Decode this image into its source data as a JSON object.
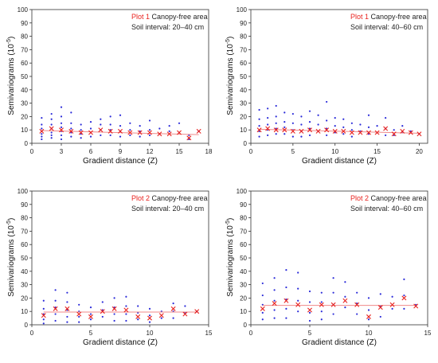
{
  "chart_data": [
    {
      "type": "scatter",
      "plot": "Plot 1",
      "area": "Canopy-free area",
      "soil_label": "Soil interval:",
      "interval": "20–40 cm",
      "xlabel": "Gradient distance (Z)",
      "ylabel_main": "Semivariograms (10",
      "ylabel_sup": "-5",
      "ylabel_end": ")",
      "xlim": [
        0,
        18
      ],
      "ylim": [
        0,
        100
      ],
      "xticks": [
        0,
        3,
        6,
        9,
        12,
        15,
        18
      ],
      "yticks": [
        0,
        10,
        20,
        30,
        40,
        50,
        60,
        70,
        80,
        90,
        100
      ],
      "points": [
        [
          1,
          19
        ],
        [
          1,
          14
        ],
        [
          1,
          11
        ],
        [
          1,
          9
        ],
        [
          1,
          7
        ],
        [
          1,
          5
        ],
        [
          1,
          3
        ],
        [
          2,
          22
        ],
        [
          2,
          18
        ],
        [
          2,
          14
        ],
        [
          2,
          11
        ],
        [
          2,
          8
        ],
        [
          2,
          6
        ],
        [
          2,
          4
        ],
        [
          3,
          27
        ],
        [
          3,
          20
        ],
        [
          3,
          15
        ],
        [
          3,
          12
        ],
        [
          3,
          9
        ],
        [
          3,
          6
        ],
        [
          3,
          3
        ],
        [
          4,
          23
        ],
        [
          4,
          15
        ],
        [
          4,
          11
        ],
        [
          4,
          8
        ],
        [
          4,
          5
        ],
        [
          5,
          14
        ],
        [
          5,
          10
        ],
        [
          5,
          7
        ],
        [
          5,
          4
        ],
        [
          6,
          16
        ],
        [
          6,
          11
        ],
        [
          6,
          8
        ],
        [
          6,
          5
        ],
        [
          7,
          18
        ],
        [
          7,
          14
        ],
        [
          7,
          10
        ],
        [
          7,
          6
        ],
        [
          8,
          20
        ],
        [
          8,
          14
        ],
        [
          8,
          10
        ],
        [
          8,
          6
        ],
        [
          9,
          21
        ],
        [
          9,
          13
        ],
        [
          9,
          9
        ],
        [
          9,
          5
        ],
        [
          10,
          15
        ],
        [
          10,
          10
        ],
        [
          10,
          6
        ],
        [
          11,
          13
        ],
        [
          11,
          9
        ],
        [
          11,
          5
        ],
        [
          12,
          17
        ],
        [
          12,
          10
        ],
        [
          12,
          6
        ],
        [
          13,
          11
        ],
        [
          13,
          7
        ],
        [
          14,
          13
        ],
        [
          14,
          9
        ],
        [
          15,
          15
        ],
        [
          15,
          8
        ],
        [
          16,
          6
        ],
        [
          16,
          3
        ],
        [
          17,
          9
        ]
      ],
      "means": [
        [
          1,
          9
        ],
        [
          2,
          11
        ],
        [
          3,
          10
        ],
        [
          4,
          9
        ],
        [
          5,
          8
        ],
        [
          6,
          8
        ],
        [
          7,
          10
        ],
        [
          8,
          9
        ],
        [
          9,
          9
        ],
        [
          10,
          8
        ],
        [
          11,
          8
        ],
        [
          12,
          8
        ],
        [
          13,
          7
        ],
        [
          14,
          7
        ],
        [
          15,
          8
        ],
        [
          16,
          4
        ],
        [
          17,
          9
        ]
      ],
      "fit": [
        [
          1,
          9.5
        ],
        [
          17,
          6.5
        ]
      ]
    },
    {
      "type": "scatter",
      "plot": "Plot 1",
      "area": "Canopy-free area",
      "soil_label": "Soil interval:",
      "interval": "40–60 cm",
      "xlabel": "Gradient distance (Z)",
      "ylabel_main": "Semivariograms (10",
      "ylabel_sup": "-5",
      "ylabel_end": ")",
      "xlim": [
        0,
        21
      ],
      "ylim": [
        0,
        100
      ],
      "xticks": [
        0,
        5,
        10,
        15,
        20
      ],
      "yticks": [
        0,
        10,
        20,
        30,
        40,
        50,
        60,
        70,
        80,
        90,
        100
      ],
      "points": [
        [
          1,
          25
        ],
        [
          1,
          18
        ],
        [
          1,
          13
        ],
        [
          1,
          9
        ],
        [
          1,
          5
        ],
        [
          2,
          26
        ],
        [
          2,
          19
        ],
        [
          2,
          14
        ],
        [
          2,
          10
        ],
        [
          2,
          6
        ],
        [
          3,
          28
        ],
        [
          3,
          20
        ],
        [
          3,
          15
        ],
        [
          3,
          11
        ],
        [
          3,
          7
        ],
        [
          4,
          23
        ],
        [
          4,
          16
        ],
        [
          4,
          12
        ],
        [
          4,
          7
        ],
        [
          5,
          22
        ],
        [
          5,
          15
        ],
        [
          5,
          10
        ],
        [
          5,
          5
        ],
        [
          6,
          20
        ],
        [
          6,
          14
        ],
        [
          6,
          9
        ],
        [
          6,
          5
        ],
        [
          7,
          24
        ],
        [
          7,
          16
        ],
        [
          7,
          11
        ],
        [
          7,
          6
        ],
        [
          8,
          21
        ],
        [
          8,
          14
        ],
        [
          8,
          9
        ],
        [
          9,
          31
        ],
        [
          9,
          17
        ],
        [
          9,
          11
        ],
        [
          9,
          6
        ],
        [
          10,
          19
        ],
        [
          10,
          13
        ],
        [
          10,
          8
        ],
        [
          11,
          18
        ],
        [
          11,
          12
        ],
        [
          11,
          7
        ],
        [
          12,
          15
        ],
        [
          12,
          10
        ],
        [
          12,
          5
        ],
        [
          13,
          14
        ],
        [
          13,
          9
        ],
        [
          14,
          21
        ],
        [
          14,
          12
        ],
        [
          14,
          7
        ],
        [
          15,
          13
        ],
        [
          15,
          8
        ],
        [
          16,
          19
        ],
        [
          16,
          11
        ],
        [
          16,
          6
        ],
        [
          17,
          10
        ],
        [
          17,
          6
        ],
        [
          18,
          13
        ],
        [
          18,
          8
        ],
        [
          19,
          9
        ],
        [
          20,
          7
        ]
      ],
      "means": [
        [
          1,
          10
        ],
        [
          2,
          11
        ],
        [
          3,
          10
        ],
        [
          4,
          10
        ],
        [
          5,
          9
        ],
        [
          6,
          9
        ],
        [
          7,
          10
        ],
        [
          8,
          9
        ],
        [
          9,
          10
        ],
        [
          10,
          9
        ],
        [
          11,
          9
        ],
        [
          12,
          8
        ],
        [
          13,
          8
        ],
        [
          14,
          8
        ],
        [
          15,
          8
        ],
        [
          16,
          11
        ],
        [
          17,
          7
        ],
        [
          18,
          9
        ],
        [
          19,
          8
        ],
        [
          20,
          7
        ]
      ],
      "fit": [
        [
          1,
          10.5
        ],
        [
          20,
          7.5
        ]
      ]
    },
    {
      "type": "scatter",
      "plot": "Plot 2",
      "area": "Canopy-free area",
      "soil_label": "Soil interval:",
      "interval": "20–40 cm",
      "xlabel": "Gradient distance (Z)",
      "ylabel_main": "Semivariograms (10",
      "ylabel_sup": "-5",
      "ylabel_end": ")",
      "xlim": [
        0,
        15
      ],
      "ylim": [
        0,
        100
      ],
      "xticks": [
        0,
        5,
        10,
        15
      ],
      "yticks": [
        0,
        10,
        20,
        30,
        40,
        50,
        60,
        70,
        80,
        90,
        100
      ],
      "points": [
        [
          1,
          18
        ],
        [
          1,
          12
        ],
        [
          1,
          8
        ],
        [
          1,
          4
        ],
        [
          1,
          1
        ],
        [
          2,
          26
        ],
        [
          2,
          18
        ],
        [
          2,
          13
        ],
        [
          2,
          8
        ],
        [
          2,
          3
        ],
        [
          3,
          24
        ],
        [
          3,
          17
        ],
        [
          3,
          11
        ],
        [
          3,
          6
        ],
        [
          3,
          2
        ],
        [
          4,
          15
        ],
        [
          4,
          10
        ],
        [
          4,
          6
        ],
        [
          4,
          2
        ],
        [
          5,
          13
        ],
        [
          5,
          8
        ],
        [
          5,
          4
        ],
        [
          6,
          17
        ],
        [
          6,
          11
        ],
        [
          6,
          6
        ],
        [
          7,
          20
        ],
        [
          7,
          13
        ],
        [
          7,
          8
        ],
        [
          7,
          3
        ],
        [
          8,
          21
        ],
        [
          8,
          14
        ],
        [
          8,
          8
        ],
        [
          8,
          3
        ],
        [
          9,
          14
        ],
        [
          9,
          9
        ],
        [
          9,
          4
        ],
        [
          10,
          12
        ],
        [
          10,
          7
        ],
        [
          10,
          2
        ],
        [
          11,
          10
        ],
        [
          11,
          5
        ],
        [
          12,
          16
        ],
        [
          12,
          10
        ],
        [
          12,
          5
        ],
        [
          13,
          14
        ],
        [
          13,
          9
        ],
        [
          14,
          10
        ]
      ],
      "means": [
        [
          1,
          7
        ],
        [
          2,
          12
        ],
        [
          3,
          12
        ],
        [
          4,
          8
        ],
        [
          5,
          6
        ],
        [
          6,
          10
        ],
        [
          7,
          12
        ],
        [
          8,
          11
        ],
        [
          9,
          6
        ],
        [
          10,
          5
        ],
        [
          11,
          7
        ],
        [
          12,
          12
        ],
        [
          13,
          8
        ],
        [
          14,
          10
        ]
      ],
      "fit": [
        [
          1,
          9.5
        ],
        [
          14,
          9.5
        ]
      ]
    },
    {
      "type": "scatter",
      "plot": "Plot 2",
      "area": "Canopy-free area",
      "soil_label": "Soil interval:",
      "interval": "40–60 cm",
      "xlabel": "Gradient distance (Z)",
      "ylabel_main": "Semivariograms (10",
      "ylabel_sup": "-5",
      "ylabel_end": ")",
      "xlim": [
        0,
        15
      ],
      "ylim": [
        0,
        100
      ],
      "xticks": [
        0,
        5,
        10,
        15
      ],
      "yticks": [
        0,
        10,
        20,
        30,
        40,
        50,
        60,
        70,
        80,
        90,
        100
      ],
      "points": [
        [
          1,
          31
        ],
        [
          1,
          22
        ],
        [
          1,
          15
        ],
        [
          1,
          9
        ],
        [
          1,
          4
        ],
        [
          2,
          35
        ],
        [
          2,
          26
        ],
        [
          2,
          18
        ],
        [
          2,
          11
        ],
        [
          2,
          5
        ],
        [
          3,
          41
        ],
        [
          3,
          28
        ],
        [
          3,
          19
        ],
        [
          3,
          12
        ],
        [
          3,
          5
        ],
        [
          4,
          39
        ],
        [
          4,
          27
        ],
        [
          4,
          18
        ],
        [
          4,
          10
        ],
        [
          5,
          25
        ],
        [
          5,
          17
        ],
        [
          5,
          9
        ],
        [
          5,
          3
        ],
        [
          6,
          24
        ],
        [
          6,
          17
        ],
        [
          6,
          10
        ],
        [
          6,
          4
        ],
        [
          7,
          35
        ],
        [
          7,
          24
        ],
        [
          7,
          15
        ],
        [
          7,
          8
        ],
        [
          8,
          32
        ],
        [
          8,
          21
        ],
        [
          8,
          13
        ],
        [
          9,
          24
        ],
        [
          9,
          16
        ],
        [
          9,
          8
        ],
        [
          10,
          20
        ],
        [
          10,
          11
        ],
        [
          10,
          4
        ],
        [
          11,
          23
        ],
        [
          11,
          14
        ],
        [
          11,
          6
        ],
        [
          12,
          21
        ],
        [
          12,
          12
        ],
        [
          13,
          34
        ],
        [
          13,
          22
        ],
        [
          13,
          12
        ],
        [
          14,
          15
        ]
      ],
      "means": [
        [
          1,
          12
        ],
        [
          2,
          16
        ],
        [
          3,
          18
        ],
        [
          4,
          15
        ],
        [
          5,
          11
        ],
        [
          6,
          15
        ],
        [
          7,
          15
        ],
        [
          8,
          18
        ],
        [
          9,
          15
        ],
        [
          10,
          6
        ],
        [
          11,
          13
        ],
        [
          12,
          15
        ],
        [
          13,
          20
        ],
        [
          14,
          14
        ]
      ],
      "fit": [
        [
          1,
          14.5
        ],
        [
          14,
          14.5
        ]
      ]
    }
  ],
  "colors": {
    "points": "#2b2bd9",
    "means": "#e8231f",
    "fit": "#f08a8a",
    "axis": "#333333"
  }
}
